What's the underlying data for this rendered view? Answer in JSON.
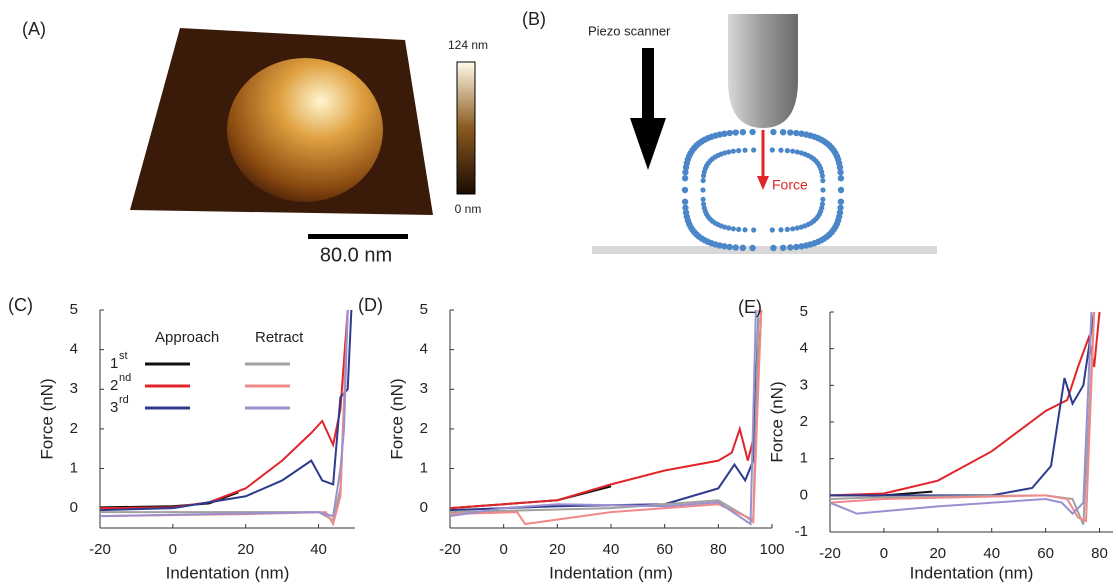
{
  "panel_a": {
    "label": "(A)",
    "colorbar_max": "124 nm",
    "colorbar_min": "0 nm",
    "scale_bar": "80.0 nm"
  },
  "panel_b": {
    "label": "(B)",
    "piezo": "Piezo scanner",
    "force": "Force"
  },
  "chart_data": [
    {
      "type": "line",
      "label": "(C)",
      "xlabel": "Indentation (nm)",
      "ylabel": "Force (nN)",
      "xlim": [
        -20,
        50
      ],
      "ylim": [
        -0.5,
        5
      ],
      "xticks": [
        -20,
        0,
        20,
        40
      ],
      "yticks": [
        0,
        1,
        2,
        3,
        4,
        5
      ],
      "legend": {
        "columns": [
          "Approach",
          "Retract"
        ],
        "rows": [
          [
            "1",
            "st"
          ],
          [
            "2",
            "nd"
          ],
          [
            "3",
            "rd"
          ]
        ]
      },
      "series": [
        {
          "color": "#111111",
          "x": [
            -20,
            0,
            10,
            18
          ],
          "values": [
            0.02,
            0.05,
            0.12,
            0.4
          ]
        },
        {
          "color": "#e0262b",
          "x": [
            -20,
            0,
            10,
            20,
            30,
            38,
            41,
            44,
            46,
            48
          ],
          "values": [
            0,
            0.02,
            0.15,
            0.5,
            1.2,
            1.9,
            2.2,
            1.6,
            2.5,
            5
          ]
        },
        {
          "color": "#2e3a8c",
          "x": [
            -20,
            0,
            20,
            30,
            38,
            41,
            44,
            46,
            48,
            49
          ],
          "values": [
            -0.05,
            0,
            0.3,
            0.7,
            1.2,
            0.7,
            0.6,
            2.8,
            3,
            5
          ]
        },
        {
          "color": "#a0a0a0",
          "x": [
            -20,
            40,
            44,
            46,
            48
          ],
          "values": [
            -0.1,
            -0.1,
            -0.3,
            0.5,
            5
          ]
        },
        {
          "color": "#f08a8a",
          "x": [
            -20,
            20,
            42,
            44,
            46,
            48
          ],
          "values": [
            -0.2,
            -0.15,
            -0.1,
            -0.4,
            0.3,
            5
          ]
        },
        {
          "color": "#9a8fcf",
          "x": [
            -20,
            40,
            44,
            46,
            47,
            48
          ],
          "values": [
            -0.2,
            -0.1,
            -0.2,
            1,
            2,
            5
          ]
        }
      ]
    },
    {
      "type": "line",
      "label": "(D)",
      "xlabel": "Indentation (nm)",
      "ylabel": "Force (nN)",
      "xlim": [
        -20,
        100
      ],
      "ylim": [
        -0.5,
        5
      ],
      "xticks": [
        -20,
        0,
        20,
        40,
        60,
        80,
        100
      ],
      "yticks": [
        0,
        1,
        2,
        3,
        4,
        5
      ],
      "series": [
        {
          "color": "#111111",
          "x": [
            -20,
            20,
            40
          ],
          "values": [
            0,
            0.2,
            0.55
          ]
        },
        {
          "color": "#e0262b",
          "x": [
            -20,
            20,
            40,
            60,
            80,
            85,
            88,
            91,
            94,
            96
          ],
          "values": [
            0,
            0.2,
            0.6,
            0.95,
            1.2,
            1.4,
            2,
            1.2,
            2,
            5
          ]
        },
        {
          "color": "#2e3a8c",
          "x": [
            -20,
            20,
            60,
            80,
            86,
            90,
            93,
            95
          ],
          "values": [
            -0.05,
            0.05,
            0.1,
            0.5,
            1.1,
            0.7,
            1.2,
            5
          ]
        },
        {
          "color": "#a0a0a0",
          "x": [
            -20,
            40,
            80,
            90,
            93,
            95
          ],
          "values": [
            -0.1,
            0,
            0.2,
            -0.2,
            -0.3,
            5
          ]
        },
        {
          "color": "#f08a8a",
          "x": [
            -20,
            5,
            8,
            40,
            80,
            90,
            93,
            96
          ],
          "values": [
            -0.15,
            -0.1,
            -0.4,
            -0.1,
            0.1,
            -0.2,
            -0.35,
            5
          ]
        },
        {
          "color": "#9a8fcf",
          "x": [
            -20,
            0,
            20,
            60,
            80,
            92,
            94
          ],
          "values": [
            -0.2,
            0,
            0.1,
            0.05,
            0.15,
            -0.4,
            5
          ]
        }
      ]
    },
    {
      "type": "line",
      "label": "(E)",
      "xlabel": "Indentation (nm)",
      "ylabel": "Force (nN)",
      "xlim": [
        -20,
        85
      ],
      "ylim": [
        -1,
        5
      ],
      "xticks": [
        -20,
        0,
        20,
        40,
        60,
        80
      ],
      "yticks": [
        -1,
        0,
        1,
        2,
        3,
        4,
        5
      ],
      "series": [
        {
          "color": "#111111",
          "x": [
            -20,
            0,
            18
          ],
          "values": [
            0,
            0,
            0.1
          ]
        },
        {
          "color": "#e0262b",
          "x": [
            -20,
            0,
            20,
            40,
            60,
            68,
            72,
            76,
            78,
            80
          ],
          "values": [
            0,
            0.05,
            0.4,
            1.2,
            2.3,
            2.6,
            3.5,
            4.3,
            3.5,
            5
          ]
        },
        {
          "color": "#2e3a8c",
          "x": [
            -20,
            40,
            55,
            62,
            67,
            70,
            74,
            78
          ],
          "values": [
            0,
            0,
            0.2,
            0.8,
            3.2,
            2.5,
            3,
            5
          ]
        },
        {
          "color": "#a0a0a0",
          "x": [
            -20,
            0,
            60,
            70,
            74,
            76,
            78
          ],
          "values": [
            -0.1,
            -0.05,
            0,
            -0.1,
            -0.8,
            2,
            5
          ]
        },
        {
          "color": "#f08a8a",
          "x": [
            -20,
            0,
            60,
            68,
            72,
            75,
            78
          ],
          "values": [
            -0.2,
            -0.1,
            0,
            -0.1,
            -0.6,
            -0.7,
            5
          ]
        },
        {
          "color": "#9a8fcf",
          "x": [
            -20,
            -10,
            20,
            60,
            66,
            70,
            74,
            77
          ],
          "values": [
            -0.2,
            -0.5,
            -0.3,
            -0.1,
            -0.2,
            -0.5,
            -0.2,
            5
          ]
        }
      ]
    }
  ]
}
